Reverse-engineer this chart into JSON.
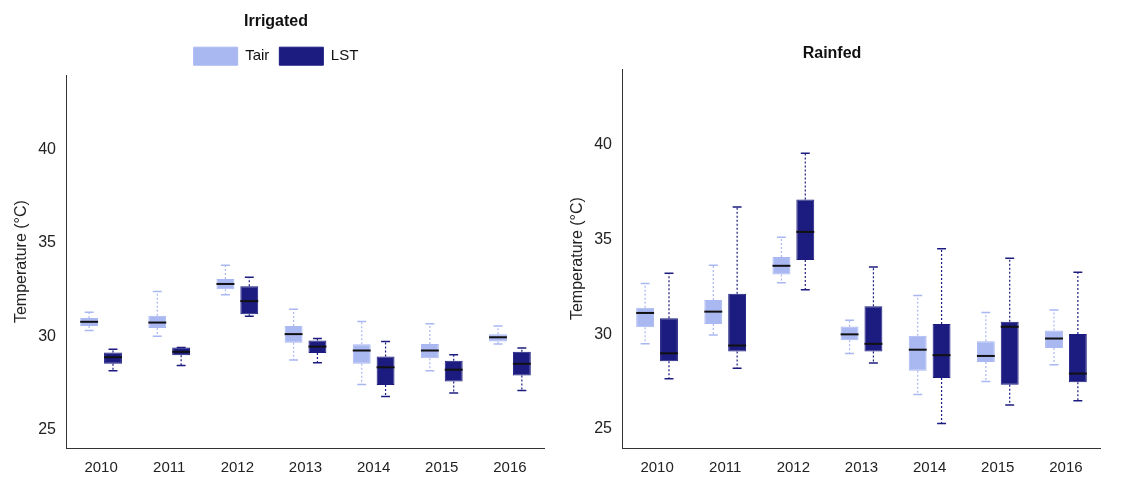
{
  "chart_data": [
    {
      "type": "box",
      "title": "Irrigated",
      "ylabel": "Temperature (°C)",
      "categories": [
        "2010",
        "2011",
        "2012",
        "2013",
        "2014",
        "2015",
        "2016"
      ],
      "ylim": [
        24,
        44
      ],
      "yticks": [
        25,
        30,
        35,
        40
      ],
      "grid": false,
      "legend": "top",
      "series": [
        {
          "name": "Tair",
          "color": "#aab8f2",
          "boxes": [
            {
              "low": 30.3,
              "q1": 30.54,
              "median": 30.77,
              "q3": 30.98,
              "high": 31.28
            },
            {
              "low": 30.0,
              "q1": 30.44,
              "median": 30.73,
              "q3": 31.1,
              "high": 32.4
            },
            {
              "low": 32.22,
              "q1": 32.51,
              "median": 32.8,
              "q3": 33.07,
              "high": 33.81
            },
            {
              "low": 28.72,
              "q1": 29.64,
              "median": 30.11,
              "q3": 30.54,
              "high": 31.44
            },
            {
              "low": 27.41,
              "q1": 28.52,
              "median": 29.23,
              "q3": 29.56,
              "high": 30.79
            },
            {
              "low": 28.14,
              "q1": 28.81,
              "median": 29.23,
              "q3": 29.58,
              "high": 30.67
            },
            {
              "low": 29.58,
              "q1": 29.71,
              "median": 29.94,
              "q3": 30.1,
              "high": 30.54
            }
          ]
        },
        {
          "name": "LST",
          "color": "#1c1c80",
          "boxes": [
            {
              "low": 28.14,
              "q1": 28.52,
              "median": 28.87,
              "q3": 29.12,
              "high": 29.3
            },
            {
              "low": 28.43,
              "q1": 28.97,
              "median": 29.16,
              "q3": 29.39,
              "high": 29.39
            },
            {
              "low": 31.07,
              "q1": 31.17,
              "median": 31.88,
              "q3": 32.68,
              "high": 33.16
            },
            {
              "low": 28.58,
              "q1": 29.1,
              "median": 29.44,
              "q3": 29.77,
              "high": 29.87
            },
            {
              "low": 26.76,
              "q1": 27.38,
              "median": 28.33,
              "q3": 28.91,
              "high": 29.71
            },
            {
              "low": 26.95,
              "q1": 27.57,
              "median": 28.2,
              "q3": 28.68,
              "high": 29.0
            },
            {
              "low": 27.09,
              "q1": 27.89,
              "median": 28.52,
              "q3": 29.16,
              "high": 29.37
            }
          ]
        }
      ]
    },
    {
      "type": "box",
      "title": "Rainfed",
      "ylabel": "Temperature (°C)",
      "categories": [
        "2010",
        "2011",
        "2012",
        "2013",
        "2014",
        "2015",
        "2016"
      ],
      "ylim": [
        24,
        44
      ],
      "yticks": [
        25,
        30,
        35,
        40
      ],
      "grid": false,
      "series": [
        {
          "color": "#aab8f2",
          "boxes": [
            {
              "low": 29.5,
              "q1": 30.37,
              "median": 31.13,
              "q3": 31.4,
              "high": 32.69
            },
            {
              "low": 29.96,
              "q1": 30.55,
              "median": 31.2,
              "q3": 31.81,
              "high": 33.65
            },
            {
              "low": 32.73,
              "q1": 33.16,
              "median": 33.62,
              "q3": 34.08,
              "high": 35.13
            },
            {
              "low": 28.99,
              "q1": 29.69,
              "median": 30.0,
              "q3": 30.42,
              "high": 30.74
            },
            {
              "low": 26.83,
              "q1": 28.08,
              "median": 29.19,
              "q3": 29.93,
              "high": 32.05
            },
            {
              "low": 27.51,
              "q1": 28.54,
              "median": 28.86,
              "q3": 29.63,
              "high": 31.16
            },
            {
              "low": 28.39,
              "q1": 29.28,
              "median": 29.78,
              "q3": 30.2,
              "high": 31.29
            }
          ]
        },
        {
          "color": "#1c1c80",
          "boxes": [
            {
              "low": 27.66,
              "q1": 28.58,
              "median": 29.0,
              "q3": 30.85,
              "high": 33.23
            },
            {
              "low": 28.21,
              "q1": 29.1,
              "median": 29.41,
              "q3": 32.14,
              "high": 36.73
            },
            {
              "low": 32.36,
              "q1": 33.93,
              "median": 35.41,
              "q3": 37.12,
              "high": 39.56
            },
            {
              "low": 28.49,
              "q1": 29.1,
              "median": 29.5,
              "q3": 31.49,
              "high": 33.56
            },
            {
              "low": 25.3,
              "q1": 27.69,
              "median": 28.9,
              "q3": 30.55,
              "high": 34.52
            },
            {
              "low": 26.27,
              "q1": 27.34,
              "median": 30.4,
              "q3": 30.66,
              "high": 34.02
            },
            {
              "low": 26.49,
              "q1": 27.47,
              "median": 27.93,
              "q3": 30.02,
              "high": 33.28
            }
          ]
        }
      ]
    }
  ]
}
